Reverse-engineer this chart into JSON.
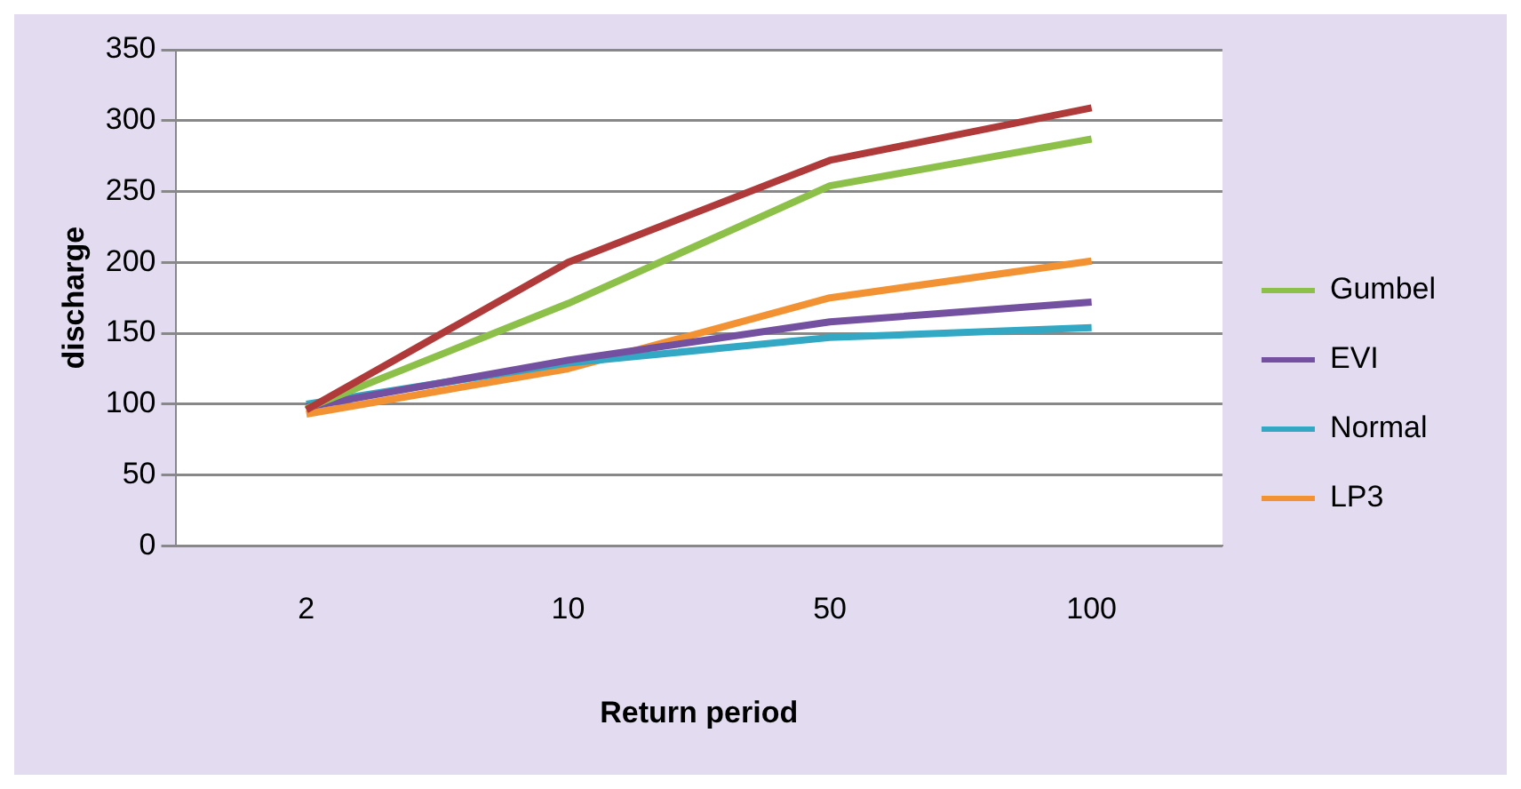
{
  "chart_data": {
    "type": "line",
    "xlabel": "Return period",
    "ylabel": "discharge",
    "categories": [
      "2",
      "10",
      "50",
      "100"
    ],
    "ylim": [
      0,
      350
    ],
    "yticks": [
      0,
      50,
      100,
      150,
      200,
      250,
      300,
      350
    ],
    "grid": "y",
    "legend": "right",
    "marker": "none",
    "line_style": "solid",
    "series": [
      {
        "color": "#b03a3a",
        "values": [
          96,
          200,
          272,
          309
        ]
      },
      {
        "name": "Gumbel",
        "color": "#8cc048",
        "values": [
          97,
          171,
          254,
          287
        ]
      },
      {
        "name": "EVI",
        "color": "#7451a0",
        "values": [
          98,
          131,
          158,
          172
        ]
      },
      {
        "name": "Normal",
        "color": "#33a8c4",
        "values": [
          100,
          129,
          147,
          154
        ]
      },
      {
        "name": "LP3",
        "color": "#f39232",
        "values": [
          93,
          125,
          175,
          201
        ]
      }
    ]
  }
}
